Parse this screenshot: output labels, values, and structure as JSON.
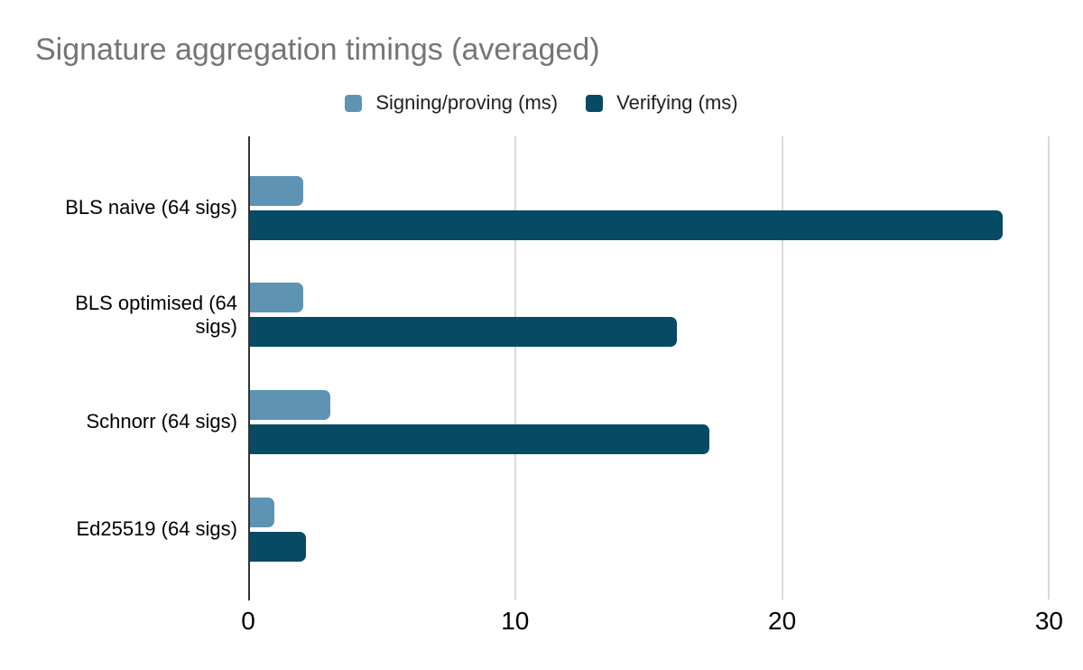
{
  "title": "Signature aggregation timings (averaged)",
  "legend": [
    {
      "label": "Signing/proving (ms)",
      "color": "#5e93b4"
    },
    {
      "label": "Verifying (ms)",
      "color": "#064a63"
    }
  ],
  "chart_data": {
    "type": "bar",
    "orientation": "horizontal",
    "title": "Signature aggregation timings (averaged)",
    "xlabel": "",
    "ylabel": "",
    "categories": [
      "BLS naive (64 sigs)",
      "BLS optimised (64 sigs)",
      "Schnorr (64 sigs)",
      "Ed25519 (64 sigs)"
    ],
    "series": [
      {
        "name": "Signing/proving (ms)",
        "color": "#5e93b4",
        "values": [
          2.0,
          2.0,
          3.0,
          0.9
        ]
      },
      {
        "name": "Verifying (ms)",
        "color": "#064a63",
        "values": [
          28.2,
          16.0,
          17.2,
          2.1
        ]
      }
    ],
    "x_ticks": [
      0,
      10,
      20,
      30
    ],
    "xlim": [
      0,
      30.73
    ],
    "grid": true,
    "legend_position": "top",
    "colors": {
      "title_text": "#757575",
      "axis_text": "#000000",
      "gridline": "#d9d9d9",
      "axis_line": "#333333",
      "background": "#ffffff"
    }
  }
}
